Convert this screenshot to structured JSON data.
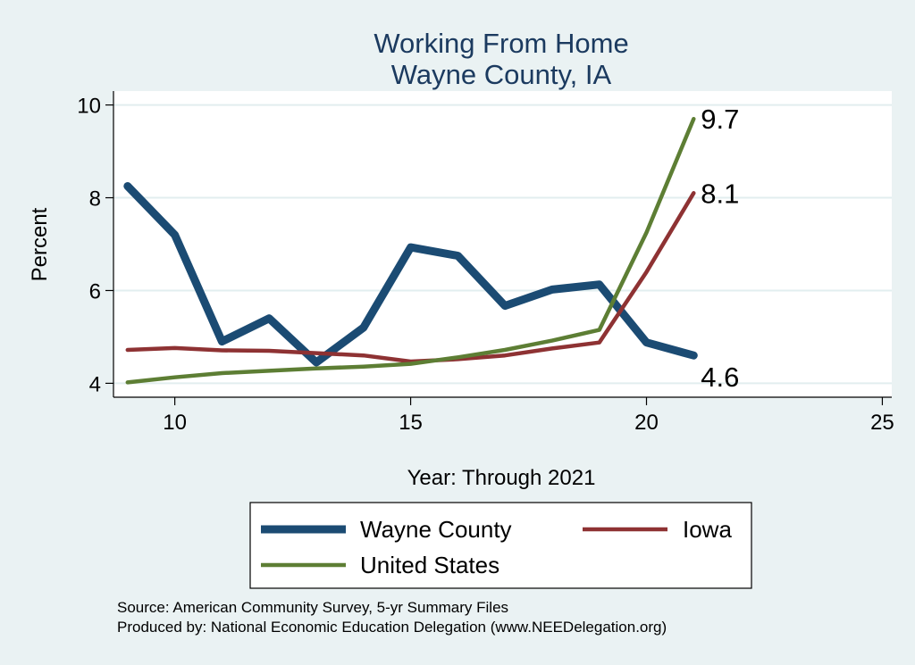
{
  "chart_data": {
    "type": "line",
    "title": [
      "Working From Home",
      "Wayne County, IA"
    ],
    "xlabel": "Year: Through 2021",
    "ylabel": "Percent",
    "xlim": [
      8.7,
      25.2
    ],
    "ylim": [
      3.7,
      10.3
    ],
    "xticks": [
      10,
      15,
      20,
      25
    ],
    "yticks": [
      4,
      6,
      8,
      10
    ],
    "grid": true,
    "legend_position": "bottom",
    "colors": {
      "background": "#eaf2f3",
      "plot_background": "#ffffff",
      "grid": "#e2eeef",
      "title": "#1b3a5f"
    },
    "series": [
      {
        "name": "Wayne County",
        "color": "#1b4b73",
        "weight": "thick",
        "x": [
          9,
          10,
          11,
          12,
          13,
          14,
          15,
          16,
          17,
          18,
          19,
          20,
          21
        ],
        "values": [
          8.25,
          7.2,
          4.9,
          5.4,
          4.45,
          5.2,
          6.93,
          6.75,
          5.67,
          6.02,
          6.13,
          4.88,
          4.6
        ],
        "end_label": "4.6"
      },
      {
        "name": "Iowa",
        "color": "#8e3233",
        "weight": "medium",
        "x": [
          9,
          10,
          11,
          12,
          13,
          14,
          15,
          16,
          17,
          18,
          19,
          20,
          21
        ],
        "values": [
          4.72,
          4.76,
          4.71,
          4.7,
          4.65,
          4.6,
          4.47,
          4.52,
          4.6,
          4.75,
          4.88,
          6.4,
          8.1
        ],
        "end_label": "8.1"
      },
      {
        "name": "United States",
        "color": "#5d7e34",
        "weight": "medium",
        "x": [
          9,
          10,
          11,
          12,
          13,
          14,
          15,
          16,
          17,
          18,
          19,
          20,
          21
        ],
        "values": [
          4.02,
          4.13,
          4.22,
          4.27,
          4.32,
          4.36,
          4.42,
          4.56,
          4.72,
          4.92,
          5.15,
          7.25,
          9.7
        ],
        "end_label": "9.7"
      }
    ]
  },
  "footer": {
    "source": "Source: American Community Survey, 5-yr Summary Files",
    "produced_by": "Produced by: National Economic Education Delegation (www.NEEDelegation.org)"
  }
}
